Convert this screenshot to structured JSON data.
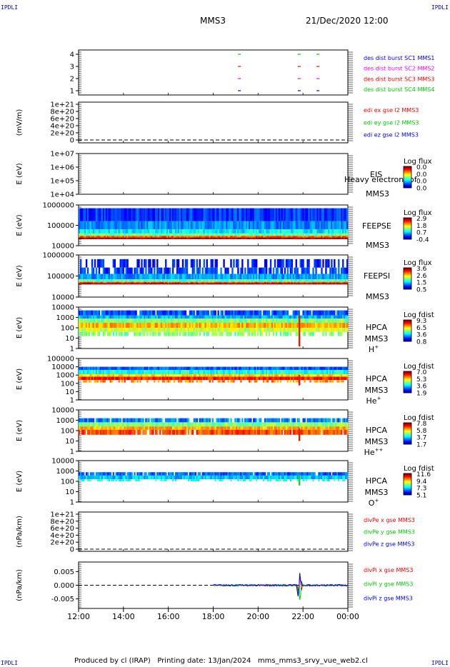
{
  "corner_label": "IPDLI",
  "header": {
    "spacecraft": "MMS3",
    "datetime": "21/Dec/2020 12:00"
  },
  "footer": {
    "text": "Produced by cl (IRAP)   Printing date: 13/Jan/2024   mms_mms3_srvy_vue_web2.cl"
  },
  "colors": {
    "red": "#ff0000",
    "green": "#00cc00",
    "blue": "#0000ff",
    "magenta": "#ff00ff",
    "axis": "#000000"
  },
  "chart_data": [
    {
      "type": "scatter",
      "panel": "burst",
      "ylabel": "",
      "yticks": [
        "1",
        "2",
        "3",
        "4"
      ],
      "legend": [
        {
          "text": "des dist burst SC1 MMS1",
          "color": "#0000ff"
        },
        {
          "text": "des dist burst SC2 MMS2",
          "color": "#ff00ff"
        },
        {
          "text": "des dist burst SC3 MMS3",
          "color": "#ff0000"
        },
        {
          "text": "des dist burst SC4 MMS4",
          "color": "#00cc00"
        }
      ],
      "series": [
        {
          "sc": 1,
          "x": [
            "19:10",
            "21:50",
            "22:40"
          ]
        },
        {
          "sc": 2,
          "x": [
            "19:10",
            "21:50",
            "22:40"
          ]
        },
        {
          "sc": 3,
          "x": [
            "19:10",
            "21:50",
            "22:40"
          ]
        },
        {
          "sc": 4,
          "x": [
            "19:10",
            "21:50",
            "22:40"
          ]
        }
      ]
    },
    {
      "type": "line",
      "panel": "edi",
      "ylabel": "(mV/m)",
      "yticks": [
        "0",
        "2e+20",
        "4e+20",
        "6e+20",
        "8e+20",
        "1e+21"
      ],
      "legend": [
        {
          "text": "edi ex gse l2 MMS3",
          "color": "#ff0000"
        },
        {
          "text": "edi ey gse l2 MMS3",
          "color": "#00cc00"
        },
        {
          "text": "edi ez gse l2 MMS3",
          "color": "#0000ff"
        }
      ]
    },
    {
      "type": "heatmap",
      "panel": "eis",
      "ylabel": "E (eV)",
      "yticks": [
        "1e+04",
        "1e+05",
        "1e+06",
        "1e+07"
      ],
      "instrument": [
        "EIS",
        "MMS3"
      ],
      "overlay_text": "Heavy electron tof",
      "colorbar": {
        "title": "Log flux",
        "ticks": [
          "0.0",
          "0.0",
          "0.0",
          "0.0"
        ]
      }
    },
    {
      "type": "heatmap",
      "panel": "feepse",
      "ylabel": "E (eV)",
      "yticks": [
        "10000",
        "100000",
        "1000000"
      ],
      "instrument": [
        "FEEPSE",
        "MMS3"
      ],
      "colorbar": {
        "title": "Log flux",
        "ticks": [
          "2.9",
          "1.8",
          "0.7",
          "-0.4"
        ]
      }
    },
    {
      "type": "heatmap",
      "panel": "feepsi",
      "ylabel": "E (eV)",
      "yticks": [
        "10000",
        "100000",
        "1000000"
      ],
      "instrument": [
        "FEEPSI",
        "MMS3"
      ],
      "colorbar": {
        "title": "Log flux",
        "ticks": [
          "3.6",
          "2.6",
          "1.5",
          "0.5"
        ]
      }
    },
    {
      "type": "heatmap",
      "panel": "hpca-h",
      "ylabel": "E (eV)",
      "yticks": [
        "1",
        "10",
        "100",
        "1000",
        "10000"
      ],
      "instrument": [
        "HPCA",
        "MMS3"
      ],
      "species": {
        "base": "H",
        "sup": "+"
      },
      "colorbar": {
        "title": "Log fdist",
        "ticks": [
          "9.3",
          "6.5",
          "3.6",
          "0.8"
        ]
      }
    },
    {
      "type": "heatmap",
      "panel": "hpca-he",
      "ylabel": "E (eV)",
      "yticks": [
        "1",
        "10",
        "100",
        "1000",
        "10000",
        "100000"
      ],
      "instrument": [
        "HPCA",
        "MMS3"
      ],
      "species": {
        "base": "He",
        "sup": "+"
      },
      "colorbar": {
        "title": "Log fdist",
        "ticks": [
          "7.0",
          "5.3",
          "3.6",
          "1.9"
        ]
      }
    },
    {
      "type": "heatmap",
      "panel": "hpca-hepp",
      "ylabel": "E (eV)",
      "yticks": [
        "1",
        "10",
        "100",
        "1000",
        "10000"
      ],
      "instrument": [
        "HPCA",
        "MMS3"
      ],
      "species": {
        "base": "He",
        "sup": "++"
      },
      "colorbar": {
        "title": "Log fdist",
        "ticks": [
          "7.8",
          "5.8",
          "3.7",
          "1.7"
        ]
      }
    },
    {
      "type": "heatmap",
      "panel": "hpca-o",
      "ylabel": "E (eV)",
      "yticks": [
        "1",
        "10",
        "100",
        "1000",
        "10000"
      ],
      "instrument": [
        "HPCA",
        "MMS3"
      ],
      "species": {
        "base": "O",
        "sup": "+"
      },
      "colorbar": {
        "title": "Log fdist",
        "ticks": [
          "11.6",
          "9.4",
          "7.3",
          "5.1"
        ]
      }
    },
    {
      "type": "line",
      "panel": "divpe",
      "ylabel": "(nPa/km)",
      "yticks": [
        "0",
        "2e+20",
        "4e+20",
        "6e+20",
        "8e+20",
        "1e+21"
      ],
      "legend": [
        {
          "text": "divPe x gse MMS3",
          "color": "#ff0000"
        },
        {
          "text": "divPe y gse MMS3",
          "color": "#00cc00"
        },
        {
          "text": "divPe z gse MMS3",
          "color": "#0000ff"
        }
      ]
    },
    {
      "type": "line",
      "panel": "divpi",
      "ylabel": "(nPa/km)",
      "yticks": [
        "-0.005",
        "0.000",
        "0.005"
      ],
      "ylim": [
        -0.0085,
        0.0085
      ],
      "legend": [
        {
          "text": "divPi x gse MMS3",
          "color": "#ff0000"
        },
        {
          "text": "divPi y gse MMS3",
          "color": "#00cc00"
        },
        {
          "text": "divPi z gse MMS3",
          "color": "#0000ff"
        }
      ],
      "data_range": [
        "18:00",
        "24:00"
      ],
      "spike_time": "21:50"
    }
  ],
  "xaxis": {
    "ticks": [
      "12:00",
      "14:00",
      "16:00",
      "18:00",
      "20:00",
      "22:00",
      "00:00"
    ]
  }
}
